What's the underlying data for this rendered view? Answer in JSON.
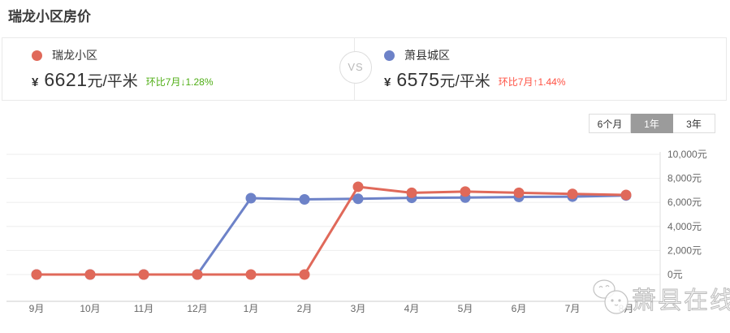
{
  "header": {
    "title": "瑞龙小区房价"
  },
  "comparison": {
    "vs_label": "VS",
    "left": {
      "name": "瑞龙小区",
      "dot_color": "#e0695a",
      "currency": "¥",
      "price": "6621",
      "unit": "元/平米",
      "change": "环比7月↓1.28%",
      "change_color": "#4fae15"
    },
    "right": {
      "name": "萧县城区",
      "dot_color": "#6d82c8",
      "currency": "¥",
      "price": "6575",
      "unit": "元/平米",
      "change": "环比7月↑1.44%",
      "change_color": "#ff5143"
    }
  },
  "tabs": [
    {
      "label": "6个月",
      "active": false
    },
    {
      "label": "1年",
      "active": true
    },
    {
      "label": "3年",
      "active": false
    }
  ],
  "watermark": {
    "text": "萧县在线"
  },
  "chart_data": {
    "type": "line",
    "title": "",
    "xlabel": "",
    "ylabel": "",
    "categories": [
      "9月",
      "10月",
      "11月",
      "12月",
      "1月",
      "2月",
      "3月",
      "4月",
      "5月",
      "6月",
      "7月",
      "8月"
    ],
    "series": [
      {
        "name": "瑞龙小区",
        "color": "#e0695a",
        "values": [
          0,
          0,
          0,
          0,
          0,
          0,
          7300,
          6800,
          6900,
          6800,
          6707,
          6621
        ]
      },
      {
        "name": "萧县城区",
        "color": "#6d82c8",
        "values": [
          0,
          0,
          0,
          0,
          6350,
          6250,
          6300,
          6380,
          6400,
          6450,
          6482,
          6575
        ]
      }
    ],
    "ylim": [
      0,
      10000
    ],
    "ytick_step": 2000,
    "ytick_labels": [
      "0元",
      "2,000元",
      "4,000元",
      "6,000元",
      "8,000元",
      "10,000元"
    ],
    "grid": "horizontal",
    "y_axis_position": "right",
    "legend_position": "top-cards"
  }
}
